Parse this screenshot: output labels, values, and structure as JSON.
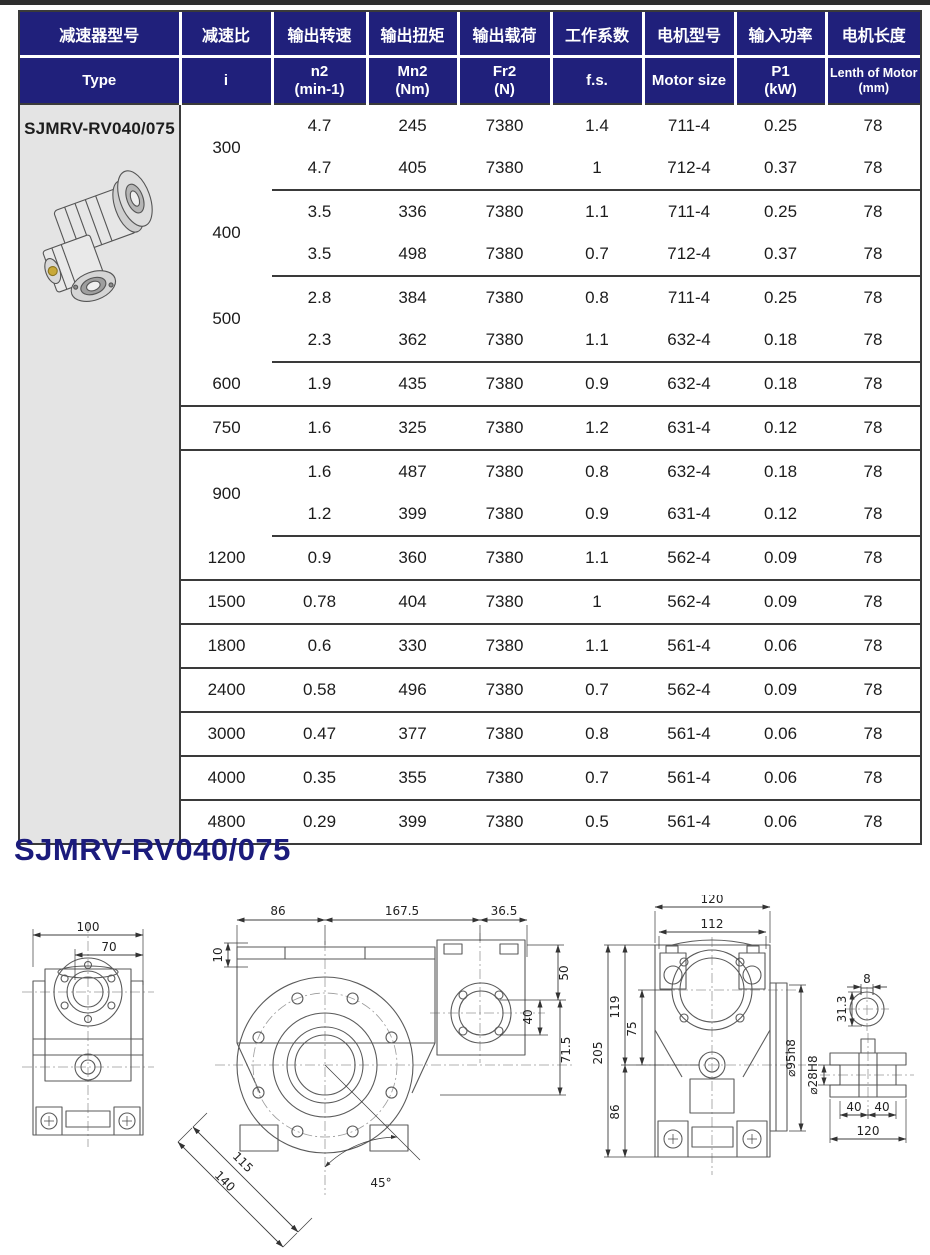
{
  "table": {
    "headers_cn": [
      "减速器型号",
      "减速比",
      "输出转速",
      "输出扭矩",
      "输出载荷",
      "工作系数",
      "电机型号",
      "输入功率",
      "电机长度"
    ],
    "headers_en": [
      {
        "l1": "Type",
        "l2": ""
      },
      {
        "l1": "i",
        "l2": ""
      },
      {
        "l1": "n2",
        "l2": "(min-1)"
      },
      {
        "l1": "Mn2",
        "l2": "(Nm)"
      },
      {
        "l1": "Fr2",
        "l2": "(N)"
      },
      {
        "l1": "f.s.",
        "l2": ""
      },
      {
        "l1": "Motor size",
        "l2": ""
      },
      {
        "l1": "P1",
        "l2": "(kW)"
      },
      {
        "l1": "Lenth of Motor",
        "l2": "(mm)"
      }
    ],
    "model": "SJMRV-RV040/075",
    "groups": [
      {
        "i": "300",
        "rows": [
          [
            "4.7",
            "245",
            "7380",
            "1.4",
            "711-4",
            "0.25",
            "78"
          ],
          [
            "4.7",
            "405",
            "7380",
            "1",
            "712-4",
            "0.37",
            "78"
          ]
        ]
      },
      {
        "i": "400",
        "rows": [
          [
            "3.5",
            "336",
            "7380",
            "1.1",
            "711-4",
            "0.25",
            "78"
          ],
          [
            "3.5",
            "498",
            "7380",
            "0.7",
            "712-4",
            "0.37",
            "78"
          ]
        ]
      },
      {
        "i": "500",
        "rows": [
          [
            "2.8",
            "384",
            "7380",
            "0.8",
            "711-4",
            "0.25",
            "78"
          ],
          [
            "2.3",
            "362",
            "7380",
            "1.1",
            "632-4",
            "0.18",
            "78"
          ]
        ]
      },
      {
        "i": "600",
        "rows": [
          [
            "1.9",
            "435",
            "7380",
            "0.9",
            "632-4",
            "0.18",
            "78"
          ]
        ]
      },
      {
        "i": "750",
        "rows": [
          [
            "1.6",
            "325",
            "7380",
            "1.2",
            "631-4",
            "0.12",
            "78"
          ]
        ]
      },
      {
        "i": "900",
        "rows": [
          [
            "1.6",
            "487",
            "7380",
            "0.8",
            "632-4",
            "0.18",
            "78"
          ],
          [
            "1.2",
            "399",
            "7380",
            "0.9",
            "631-4",
            "0.12",
            "78"
          ]
        ]
      },
      {
        "i": "1200",
        "rows": [
          [
            "0.9",
            "360",
            "7380",
            "1.1",
            "562-4",
            "0.09",
            "78"
          ]
        ]
      },
      {
        "i": "1500",
        "rows": [
          [
            "0.78",
            "404",
            "7380",
            "1",
            "562-4",
            "0.09",
            "78"
          ]
        ]
      },
      {
        "i": "1800",
        "rows": [
          [
            "0.6",
            "330",
            "7380",
            "1.1",
            "561-4",
            "0.06",
            "78"
          ]
        ]
      },
      {
        "i": "2400",
        "rows": [
          [
            "0.58",
            "496",
            "7380",
            "0.7",
            "562-4",
            "0.09",
            "78"
          ]
        ]
      },
      {
        "i": "3000",
        "rows": [
          [
            "0.47",
            "377",
            "7380",
            "0.8",
            "561-4",
            "0.06",
            "78"
          ]
        ]
      },
      {
        "i": "4000",
        "rows": [
          [
            "0.35",
            "355",
            "7380",
            "0.7",
            "561-4",
            "0.06",
            "78"
          ]
        ]
      },
      {
        "i": "4800",
        "rows": [
          [
            "0.29",
            "399",
            "7380",
            "0.5",
            "561-4",
            "0.06",
            "78"
          ]
        ]
      }
    ]
  },
  "section_title": "SJMRV-RV040/075",
  "drawings": {
    "front_small": {
      "dim_100": "100",
      "dim_70": "70"
    },
    "side": {
      "dim_86": "86",
      "dim_167_5": "167.5",
      "dim_36_5": "36.5",
      "dim_10": "10",
      "dim_50": "50",
      "dim_40": "40",
      "dim_71_5": "71.5",
      "dim_115": "115",
      "dim_140": "140",
      "dim_45": "45°"
    },
    "front_large": {
      "dim_120": "120",
      "dim_112": "112",
      "dim_205": "205",
      "dim_119": "119",
      "dim_75": "75",
      "dim_86": "86",
      "dim_d95": "⌀95h8"
    },
    "shaft_key": {
      "dim_8": "8",
      "dim_31_3": "31.3"
    },
    "shaft_section": {
      "dim_d28": "⌀28H8",
      "dim_40a": "40",
      "dim_40b": "40",
      "dim_120": "120"
    }
  },
  "colors": {
    "header_bg": "#20207b",
    "title_text": "#1b1b7c",
    "model_col_bg": "#e4e4e4",
    "border": "#3a3a3a"
  }
}
